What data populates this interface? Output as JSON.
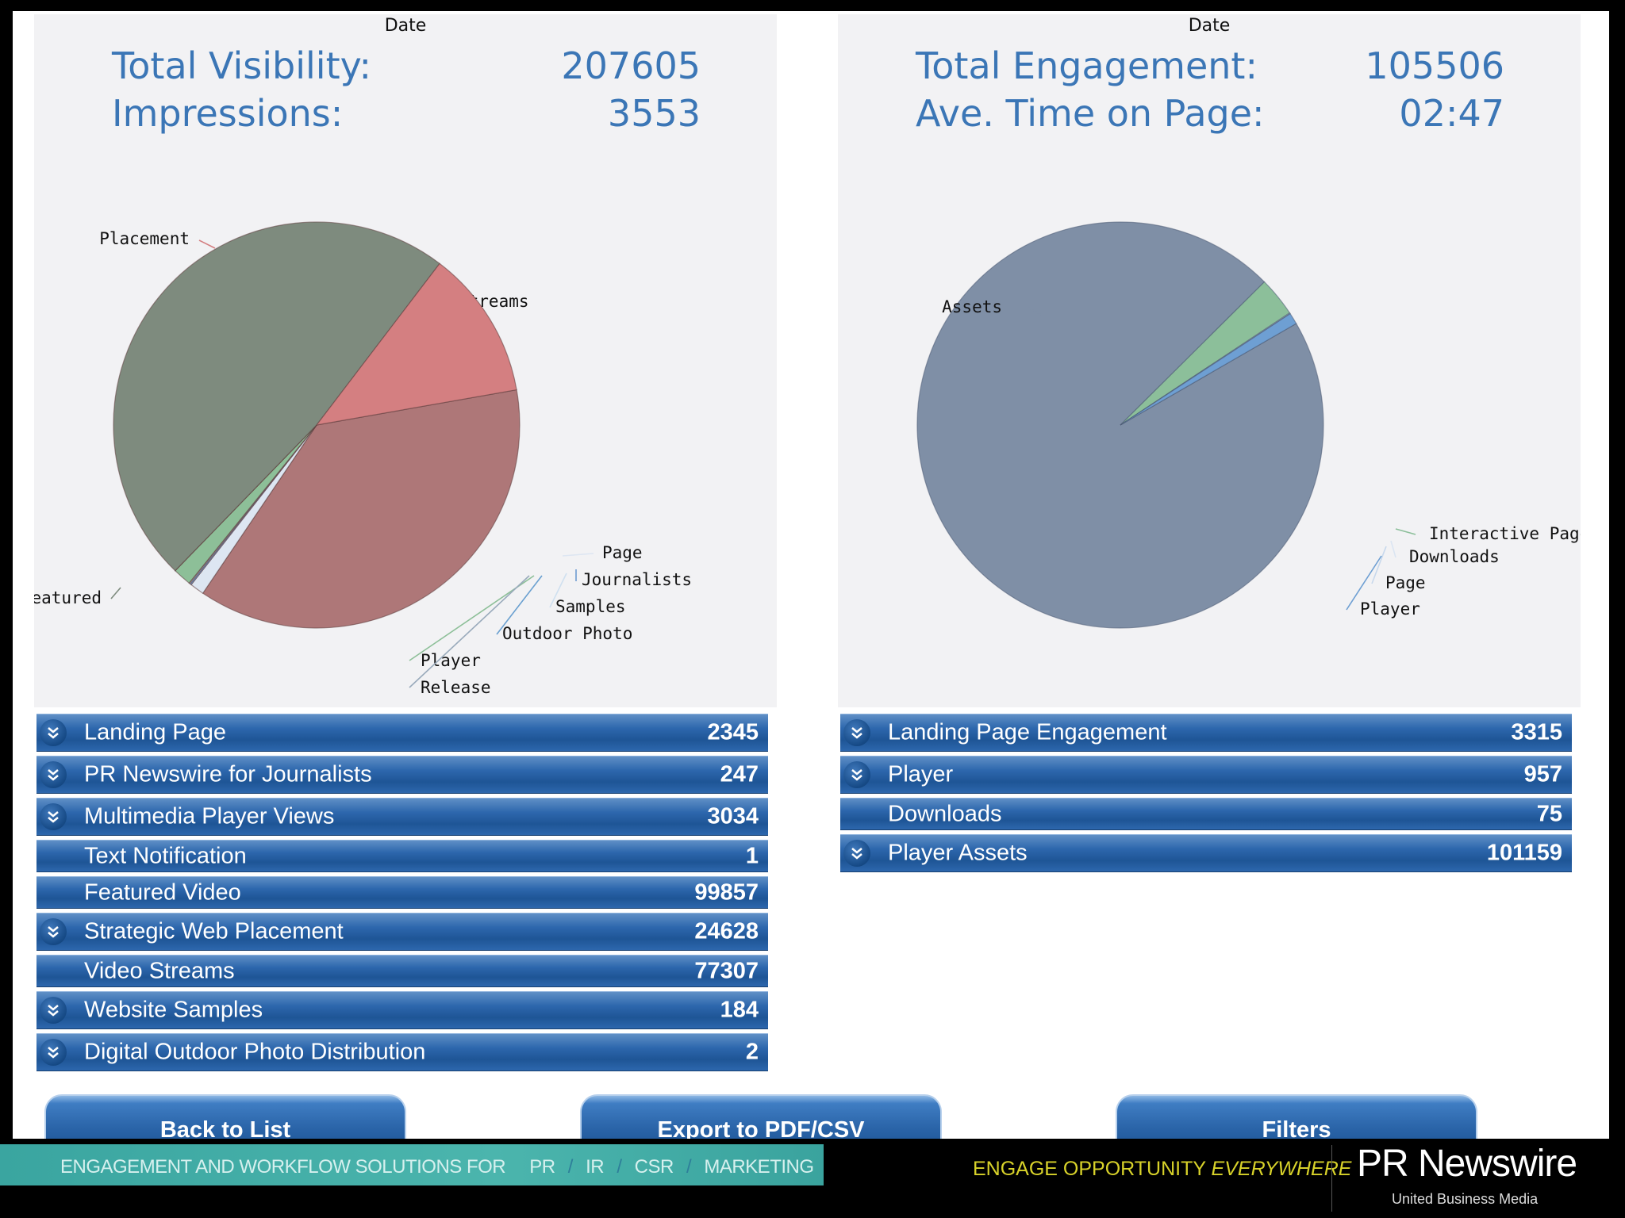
{
  "left_panel": {
    "date_label": "Date",
    "stats": [
      {
        "label": "Total Visibility:",
        "value": "207605"
      },
      {
        "label": "Impressions:",
        "value": "3553"
      }
    ]
  },
  "right_panel": {
    "date_label": "Date",
    "stats": [
      {
        "label": "Total Engagement:",
        "value": "105506"
      },
      {
        "label": "Ave. Time on Page:",
        "value": "02:47"
      }
    ]
  },
  "chart_data": [
    {
      "type": "pie",
      "slices": [
        {
          "label": "Streams",
          "value": 77307,
          "color": "#ae7778"
        },
        {
          "label": "Page",
          "value": 2345,
          "color": "#dde6f2"
        },
        {
          "label": "Journalists",
          "value": 247,
          "color": "#6d9bd1"
        },
        {
          "label": "Samples",
          "value": 184,
          "color": "#cfe0f0"
        },
        {
          "label": "Outdoor Photo",
          "value": 2,
          "color": "#6aa0d0"
        },
        {
          "label": "Player",
          "value": 3034,
          "color": "#8dbf98"
        },
        {
          "label": "Release",
          "value": 1,
          "color": "#e6e6e6"
        },
        {
          "label": "Featured",
          "value": 99857,
          "color": "#7e8b7e"
        },
        {
          "label": "Placement",
          "value": 24628,
          "color": "#d47f81"
        }
      ]
    },
    {
      "type": "pie",
      "slices": [
        {
          "label": "Assets",
          "value": 101159,
          "color": "#7f8fa6"
        },
        {
          "label": "Interactive Page \\",
          "value": 3315,
          "color": "#8cbf9a"
        },
        {
          "label": "Downloads",
          "value": 75,
          "color": "#dbe5f2"
        },
        {
          "label": "Page",
          "value": 0,
          "color": "#c7d8ec"
        },
        {
          "label": "Player",
          "value": 957,
          "color": "#6e9fd3"
        }
      ]
    }
  ],
  "left_bars": [
    {
      "label": "Landing Page",
      "value": "2345",
      "expandable": true
    },
    {
      "label": "PR Newswire for Journalists",
      "value": "247",
      "expandable": true
    },
    {
      "label": "Multimedia Player Views",
      "value": "3034",
      "expandable": true
    },
    {
      "label": "Text Notification",
      "value": "1",
      "expandable": false
    },
    {
      "label": "Featured Video",
      "value": "99857",
      "expandable": false
    },
    {
      "label": "Strategic Web Placement",
      "value": "24628",
      "expandable": true
    },
    {
      "label": "Video Streams",
      "value": "77307",
      "expandable": false
    },
    {
      "label": "Website Samples",
      "value": "184",
      "expandable": true
    },
    {
      "label": "Digital Outdoor Photo Distribution",
      "value": "2",
      "expandable": true
    }
  ],
  "right_bars": [
    {
      "label": "Landing Page Engagement",
      "value": "3315",
      "expandable": true
    },
    {
      "label": "Player",
      "value": "957",
      "expandable": true
    },
    {
      "label": "Downloads",
      "value": "75",
      "expandable": false
    },
    {
      "label": "Player Assets",
      "value": "101159",
      "expandable": true
    }
  ],
  "buttons": {
    "back": "Back to List",
    "export": "Export to PDF/CSV",
    "filters": "Filters"
  },
  "footer": {
    "solutions_text": "ENGAGEMENT AND WORKFLOW SOLUTIONS FOR",
    "segments": [
      "PR",
      "IR",
      "CSR",
      "MARKETING"
    ],
    "tagline_main": "ENGAGE OPPORTUNITY",
    "tagline_em": "EVERYWHERE",
    "logo": "PR Newswire",
    "sublogo": "United Business Media"
  }
}
